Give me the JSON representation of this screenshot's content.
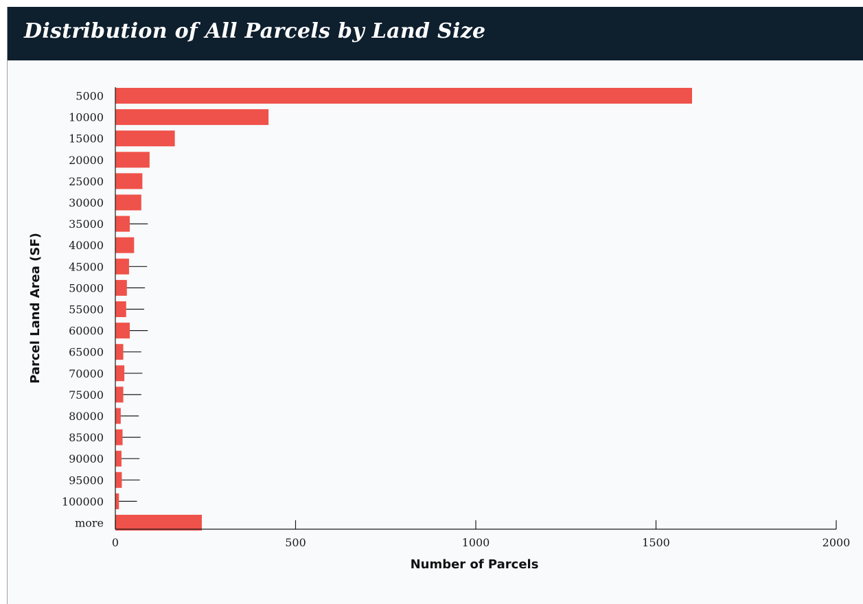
{
  "header": {
    "title": "Distribution of All Parcels by Land Size"
  },
  "colors": {
    "header_bg": "#0e1f2e",
    "bar": "#ef524a",
    "axis": "#1a1a1a",
    "background": "#f8fafc"
  },
  "chart_data": {
    "type": "bar",
    "orientation": "horizontal",
    "title": "Distribution of All Parcels by Land Size",
    "xlabel": "Number of Parcels",
    "ylabel": "Parcel Land Area (SF)",
    "xlim": [
      0,
      2000
    ],
    "xticks": [
      "0",
      "500",
      "1000",
      "1500",
      "2000"
    ],
    "categories": [
      "5000",
      "10000",
      "15000",
      "20000",
      "25000",
      "30000",
      "35000",
      "40000",
      "45000",
      "50000",
      "55000",
      "60000",
      "65000",
      "70000",
      "75000",
      "80000",
      "85000",
      "90000",
      "95000",
      "100000",
      "more"
    ],
    "values": [
      1600,
      425,
      165,
      95,
      75,
      72,
      40,
      52,
      38,
      32,
      30,
      40,
      22,
      25,
      22,
      15,
      20,
      17,
      18,
      10,
      240
    ],
    "error": [
      0,
      0,
      0,
      0,
      0,
      0,
      50,
      0,
      50,
      50,
      50,
      50,
      50,
      50,
      50,
      50,
      50,
      50,
      50,
      50,
      0
    ],
    "grid": false,
    "legend": "none"
  }
}
